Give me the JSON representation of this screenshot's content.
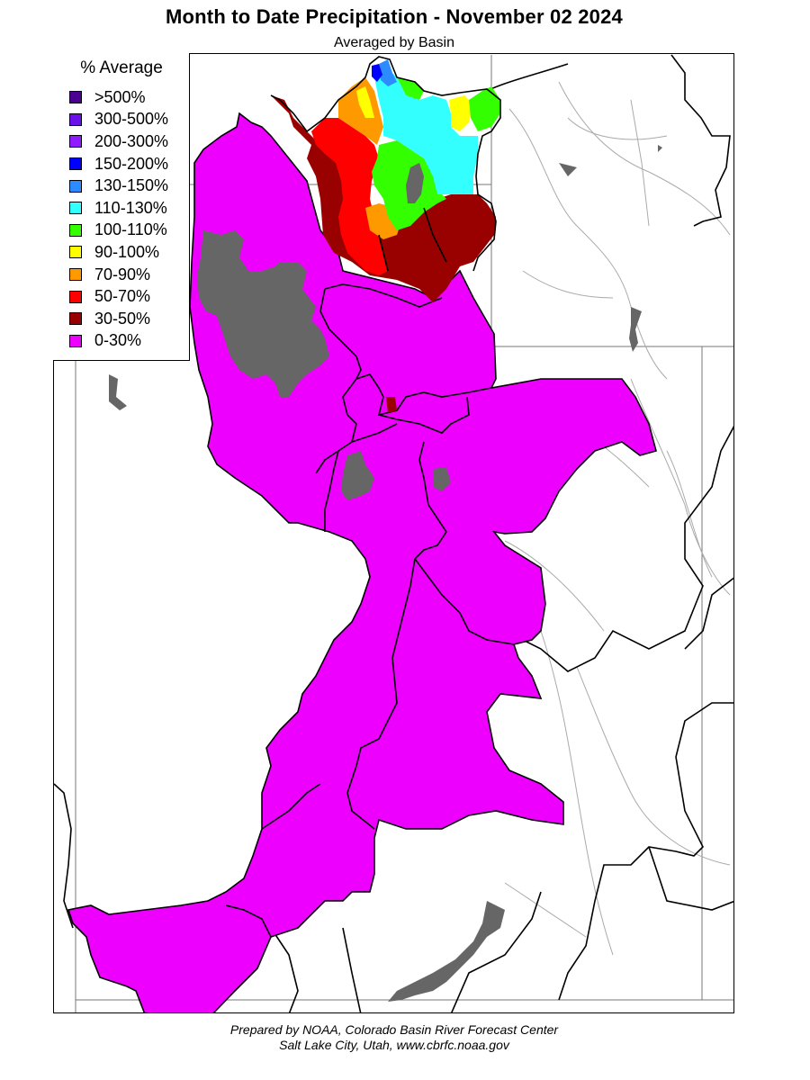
{
  "header": {
    "title": "Month to Date Precipitation - November 02 2024",
    "subtitle": "Averaged by Basin"
  },
  "legend": {
    "title": "% Average",
    "items": [
      {
        "label": ">500%",
        "color": "#4b0092"
      },
      {
        "label": "300-500%",
        "color": "#6a10e8"
      },
      {
        "label": "200-300%",
        "color": "#8f1cff"
      },
      {
        "label": "150-200%",
        "color": "#0000ff"
      },
      {
        "label": "130-150%",
        "color": "#2c8cff"
      },
      {
        "label": "110-130%",
        "color": "#33ffff"
      },
      {
        "label": "100-110%",
        "color": "#33ff00"
      },
      {
        "label": "90-100%",
        "color": "#ffff00"
      },
      {
        "label": "70-90%",
        "color": "#ff9900"
      },
      {
        "label": "50-70%",
        "color": "#ff0000"
      },
      {
        "label": "30-50%",
        "color": "#990000"
      },
      {
        "label": "0-30%",
        "color": "#ee00ff"
      }
    ]
  },
  "map": {
    "no_data_color": "#666666",
    "basin_outline_color": "#000000",
    "river_color": "#aaaaaa"
  },
  "footer": {
    "line1": "Prepared by NOAA, Colorado Basin River Forecast Center",
    "line2": "Salt Lake City, Utah, www.cbrfc.noaa.gov"
  }
}
